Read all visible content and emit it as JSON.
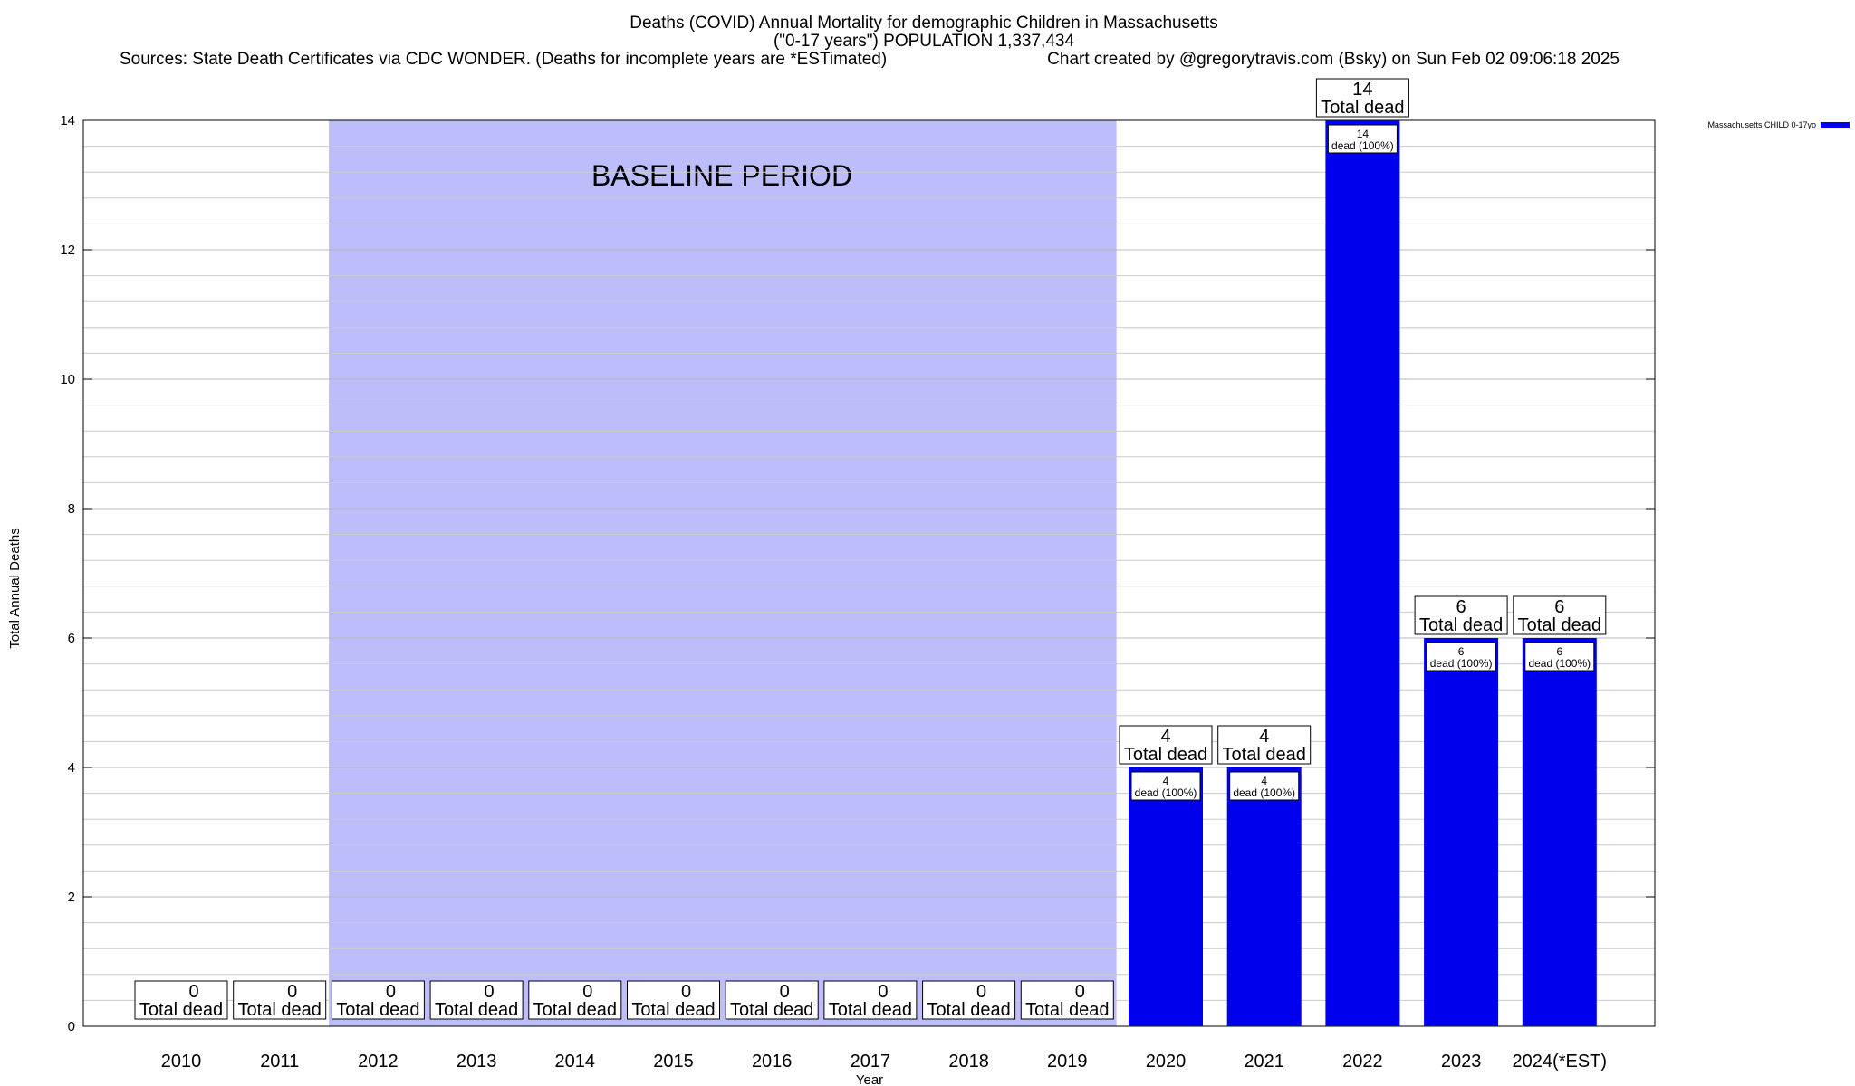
{
  "chart_data": {
    "type": "bar",
    "title": "Deaths (COVID) Annual Mortality for demographic Children in Massachusetts",
    "subtitle": "(\"0-17 years\") POPULATION 1,337,434",
    "source_note": "Sources: State Death Certificates via CDC WONDER. (Deaths for incomplete years are *ESTimated)",
    "credit": "Chart created by @gregorytravis.com (Bsky) on Sun Feb 02 09:06:18 2025",
    "xlabel": "Year",
    "ylabel": "Total Annual Deaths",
    "ylim": [
      0,
      14
    ],
    "y_ticks": [
      0,
      2,
      4,
      6,
      8,
      10,
      12,
      14
    ],
    "grid": true,
    "categories": [
      "2010",
      "2011",
      "2012",
      "2013",
      "2014",
      "2015",
      "2016",
      "2017",
      "2018",
      "2019",
      "2020",
      "2021",
      "2022",
      "2023",
      "2024(*EST)"
    ],
    "series": [
      {
        "name": "Massachusetts CHILD 0-17yo",
        "values": [
          0,
          0,
          0,
          0,
          0,
          0,
          0,
          0,
          0,
          0,
          4,
          4,
          14,
          6,
          6
        ]
      }
    ],
    "bar_color": "#0000ee",
    "baseline_color": "#bdbdfc",
    "baseline_period": {
      "label": "BASELINE PERIOD",
      "from": "2012",
      "to": "2019"
    },
    "total_label": "Total dead",
    "inner_label_suffix": "dead (100%)",
    "legend_position": "top-right"
  }
}
